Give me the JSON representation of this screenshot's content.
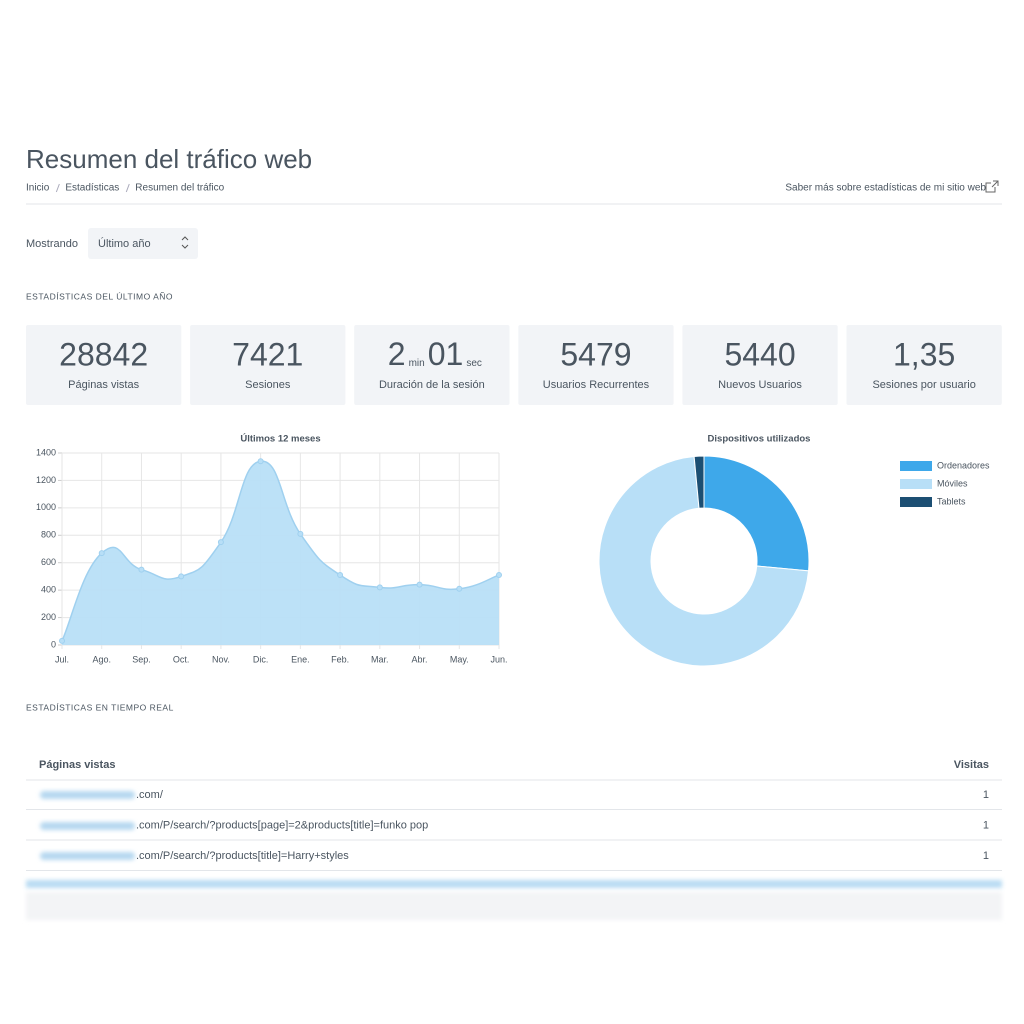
{
  "header": {
    "title": "Resumen del tráfico web",
    "breadcrumb": [
      "Inicio",
      "Estadísticas",
      "Resumen del tráfico"
    ],
    "link": "Saber más sobre estadísticas de mi sitio web"
  },
  "filter": {
    "label": "Mostrando",
    "value": "Último año"
  },
  "section_year": "ESTADÍSTICAS DEL ÚLTIMO AÑO",
  "stats": [
    {
      "value": 28842,
      "label": "Páginas vistas"
    },
    {
      "value": 7421,
      "label": "Sesiones"
    },
    {
      "value": 2,
      "unit": "min",
      "value2": "01",
      "unit2": "sec",
      "label": "Duración de la sesión"
    },
    {
      "value": 5479,
      "label": "Usuarios Recurrentes"
    },
    {
      "value": 5440,
      "label": "Nuevos Usuarios"
    },
    {
      "value": "1,35",
      "label": "Sesiones por usuario"
    }
  ],
  "chart_data": [
    {
      "type": "area",
      "title": "Últimos 12 meses",
      "categories": [
        "Jul.",
        "Ago.",
        "Sep.",
        "Oct.",
        "Nov.",
        "Dic.",
        "Ene.",
        "Feb.",
        "Mar.",
        "Abr.",
        "May.",
        "Jun."
      ],
      "values": [
        30,
        670,
        550,
        500,
        750,
        1340,
        810,
        510,
        420,
        440,
        410,
        510
      ],
      "color": "#b8dff7",
      "line_color": "#9fd0ef",
      "ylim": [
        0,
        1400
      ],
      "yticks": [
        0,
        200,
        400,
        600,
        800,
        1000,
        1200,
        1400
      ],
      "grid": true
    },
    {
      "type": "donut",
      "title": "Dispositivos utilizados",
      "categories": [
        "Ordenadores",
        "Móviles",
        "Tablets"
      ],
      "values": [
        26.5,
        72,
        1.5
      ],
      "colors": [
        "#3ea8ea",
        "#b8dff7",
        "#1c4f73"
      ],
      "legend": "right"
    }
  ],
  "section_realtime": "ESTADÍSTICAS EN TIEMPO REAL",
  "table": {
    "headers": [
      "Páginas vistas",
      "Visitas"
    ],
    "rows": [
      [
        ".com/",
        1
      ],
      [
        ".com/P/search/?products[page]=2&products[title]=funko pop",
        1
      ],
      [
        ".com/P/search/?products[title]=Harry+styles",
        1
      ]
    ]
  }
}
